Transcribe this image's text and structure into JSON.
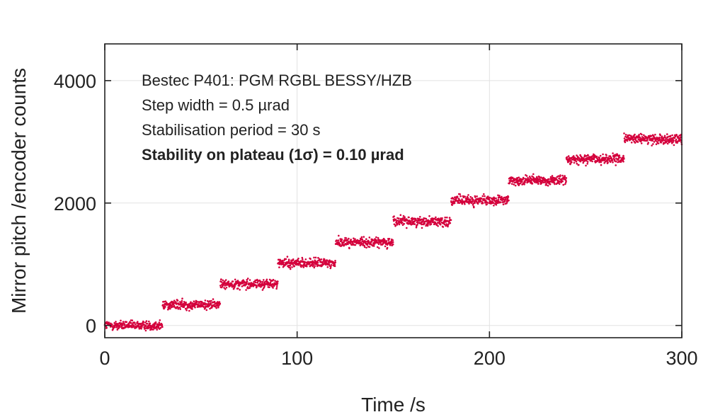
{
  "chart_data": {
    "type": "scatter",
    "xlabel": "Time /s",
    "ylabel": "Mirror pitch /encoder counts",
    "xlim": [
      0,
      300
    ],
    "ylim": [
      -200,
      4600
    ],
    "x_ticks": [
      0,
      100,
      200,
      300
    ],
    "y_ticks": [
      0,
      2000,
      4000
    ],
    "x_tick_labels": [
      "0",
      "100",
      "200",
      "300"
    ],
    "y_tick_labels": [
      "0",
      "2000",
      "4000"
    ],
    "grid": true,
    "annotations": [
      "Bestec P401: PGM RGBL BESSY/HZB",
      "Step width = 0.5 µrad",
      "Stabilisation period = 30 s",
      "Stability on plateau (1σ) = 0.10 µrad"
    ],
    "series": [
      {
        "color": "#d4003c",
        "plateaus": [
          {
            "t_start": 0,
            "t_end": 30,
            "mean": 0
          },
          {
            "t_start": 30,
            "t_end": 60,
            "mean": 340
          },
          {
            "t_start": 60,
            "t_end": 90,
            "mean": 680
          },
          {
            "t_start": 90,
            "t_end": 120,
            "mean": 1020
          },
          {
            "t_start": 120,
            "t_end": 150,
            "mean": 1360
          },
          {
            "t_start": 150,
            "t_end": 180,
            "mean": 1700
          },
          {
            "t_start": 180,
            "t_end": 210,
            "mean": 2040
          },
          {
            "t_start": 210,
            "t_end": 240,
            "mean": 2370
          },
          {
            "t_start": 240,
            "t_end": 270,
            "mean": 2720
          },
          {
            "t_start": 270,
            "t_end": 300,
            "mean": 3050
          }
        ],
        "plateau_spread": 70
      }
    ]
  }
}
